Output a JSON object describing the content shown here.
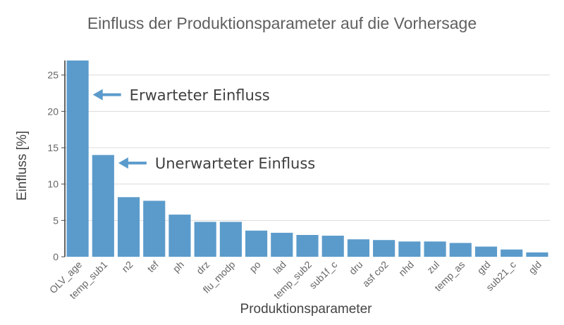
{
  "chart_data": {
    "type": "bar",
    "title": "Einfluss der Produktionsparameter auf die Vorhersage",
    "xlabel": "Produktionsparameter",
    "ylabel": "Einfluss [%]",
    "ylim": [
      0,
      27
    ],
    "yticks": [
      0,
      5,
      10,
      15,
      20,
      25
    ],
    "grid": true,
    "categories": [
      "OLV_age",
      "temp_sub1",
      "n2",
      "tef",
      "ph",
      "drz",
      "flu_modp",
      "po",
      "lad",
      "temp_sub2",
      "sub1f_c",
      "dru",
      "asf co2",
      "nhd",
      "zul",
      "temp_as",
      "gtd",
      "sub21_c",
      "gld"
    ],
    "values": [
      27,
      14,
      8.2,
      7.7,
      5.8,
      4.8,
      4.8,
      3.6,
      3.3,
      3.0,
      2.9,
      2.4,
      2.3,
      2.1,
      2.1,
      1.9,
      1.4,
      1.0,
      0.6
    ],
    "bar_color": "#5b9bcb",
    "annotations": [
      {
        "text": "Erwarteter Einfluss",
        "category_index": 0,
        "y": 22.3
      },
      {
        "text": "Unerwarteter Einfluss",
        "category_index": 1,
        "y": 12.9
      }
    ],
    "annotation_color": "#5b9bcb"
  }
}
